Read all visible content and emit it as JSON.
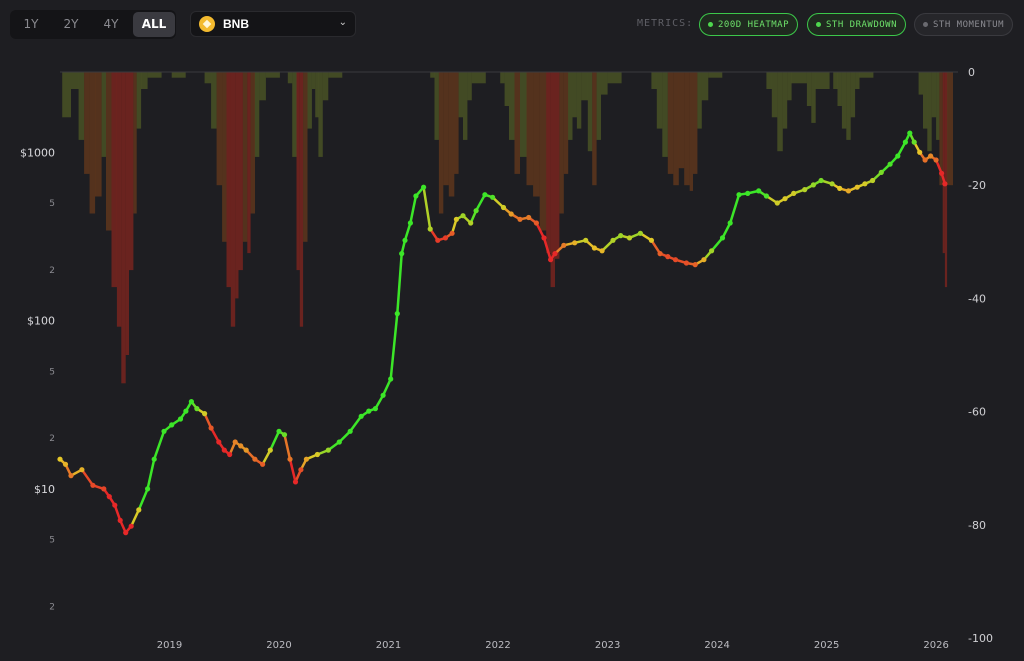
{
  "toolbar": {
    "ranges": [
      {
        "label": "1Y",
        "active": false
      },
      {
        "label": "2Y",
        "active": false
      },
      {
        "label": "4Y",
        "active": false
      },
      {
        "label": "ALL",
        "active": true
      }
    ],
    "asset": "BNB",
    "metrics_label": "METRICS:",
    "metrics": [
      {
        "label": "200D HEATMAP",
        "active": true
      },
      {
        "label": "STH DRAWDOWN",
        "active": true
      },
      {
        "label": "STH MOMENTUM",
        "active": false
      }
    ]
  },
  "chart_data": {
    "type": "line",
    "left_axis": {
      "scale": "log",
      "range": [
        1.3,
        3000
      ],
      "major_ticks": [
        {
          "value": 1000,
          "label": "$1000"
        },
        {
          "value": 100,
          "label": "$100"
        },
        {
          "value": 10,
          "label": "$10"
        }
      ],
      "minor_ticks": [
        {
          "value": 500,
          "label": "5"
        },
        {
          "value": 200,
          "label": "2"
        },
        {
          "value": 50,
          "label": "5"
        },
        {
          "value": 20,
          "label": "2"
        },
        {
          "value": 5,
          "label": "5"
        },
        {
          "value": 2,
          "label": "2"
        }
      ]
    },
    "right_axis": {
      "range": [
        -100,
        0
      ],
      "ticks": [
        {
          "value": 0,
          "label": "0"
        },
        {
          "value": -20,
          "label": "-20"
        },
        {
          "value": -40,
          "label": "-40"
        },
        {
          "value": -60,
          "label": "-60"
        },
        {
          "value": -80,
          "label": "-80"
        },
        {
          "value": -100,
          "label": "-100"
        }
      ]
    },
    "x_axis": {
      "range": [
        2018.0,
        2026.2
      ],
      "ticks": [
        {
          "value": 2019,
          "label": "2019"
        },
        {
          "value": 2020,
          "label": "2020"
        },
        {
          "value": 2021,
          "label": "2021"
        },
        {
          "value": 2022,
          "label": "2022"
        },
        {
          "value": 2023,
          "label": "2023"
        },
        {
          "value": 2024,
          "label": "2024"
        },
        {
          "value": 2025,
          "label": "2025"
        },
        {
          "value": 2026,
          "label": "2026"
        }
      ]
    },
    "price_series": [
      [
        2018.0,
        15
      ],
      [
        2018.05,
        14
      ],
      [
        2018.1,
        12
      ],
      [
        2018.2,
        13
      ],
      [
        2018.3,
        10.5
      ],
      [
        2018.4,
        10
      ],
      [
        2018.45,
        9
      ],
      [
        2018.5,
        8
      ],
      [
        2018.55,
        6.5
      ],
      [
        2018.6,
        5.5
      ],
      [
        2018.65,
        6
      ],
      [
        2018.72,
        7.5
      ],
      [
        2018.8,
        10
      ],
      [
        2018.86,
        15
      ],
      [
        2018.95,
        22
      ],
      [
        2019.02,
        24
      ],
      [
        2019.1,
        26
      ],
      [
        2019.15,
        29
      ],
      [
        2019.2,
        33
      ],
      [
        2019.25,
        30
      ],
      [
        2019.32,
        28
      ],
      [
        2019.38,
        23
      ],
      [
        2019.45,
        19
      ],
      [
        2019.5,
        17
      ],
      [
        2019.55,
        16
      ],
      [
        2019.6,
        19
      ],
      [
        2019.65,
        18
      ],
      [
        2019.7,
        17
      ],
      [
        2019.78,
        15
      ],
      [
        2019.85,
        14
      ],
      [
        2019.92,
        17
      ],
      [
        2020.0,
        22
      ],
      [
        2020.05,
        21
      ],
      [
        2020.1,
        15
      ],
      [
        2020.15,
        11
      ],
      [
        2020.2,
        13
      ],
      [
        2020.25,
        15
      ],
      [
        2020.35,
        16
      ],
      [
        2020.45,
        17
      ],
      [
        2020.55,
        19
      ],
      [
        2020.65,
        22
      ],
      [
        2020.75,
        27
      ],
      [
        2020.82,
        29
      ],
      [
        2020.88,
        30
      ],
      [
        2020.95,
        36
      ],
      [
        2021.02,
        45
      ],
      [
        2021.08,
        110
      ],
      [
        2021.12,
        250
      ],
      [
        2021.15,
        300
      ],
      [
        2021.2,
        380
      ],
      [
        2021.25,
        550
      ],
      [
        2021.32,
        620
      ],
      [
        2021.38,
        350
      ],
      [
        2021.45,
        300
      ],
      [
        2021.52,
        310
      ],
      [
        2021.58,
        330
      ],
      [
        2021.62,
        400
      ],
      [
        2021.68,
        420
      ],
      [
        2021.75,
        380
      ],
      [
        2021.8,
        450
      ],
      [
        2021.88,
        560
      ],
      [
        2021.95,
        540
      ],
      [
        2022.05,
        470
      ],
      [
        2022.12,
        430
      ],
      [
        2022.2,
        400
      ],
      [
        2022.28,
        410
      ],
      [
        2022.35,
        380
      ],
      [
        2022.42,
        310
      ],
      [
        2022.48,
        230
      ],
      [
        2022.52,
        250
      ],
      [
        2022.6,
        280
      ],
      [
        2022.7,
        290
      ],
      [
        2022.8,
        300
      ],
      [
        2022.88,
        270
      ],
      [
        2022.95,
        260
      ],
      [
        2023.05,
        300
      ],
      [
        2023.12,
        320
      ],
      [
        2023.2,
        310
      ],
      [
        2023.3,
        330
      ],
      [
        2023.4,
        300
      ],
      [
        2023.48,
        250
      ],
      [
        2023.55,
        240
      ],
      [
        2023.62,
        230
      ],
      [
        2023.72,
        220
      ],
      [
        2023.8,
        215
      ],
      [
        2023.88,
        230
      ],
      [
        2023.95,
        260
      ],
      [
        2024.05,
        310
      ],
      [
        2024.12,
        380
      ],
      [
        2024.2,
        560
      ],
      [
        2024.28,
        570
      ],
      [
        2024.38,
        590
      ],
      [
        2024.45,
        550
      ],
      [
        2024.55,
        500
      ],
      [
        2024.62,
        530
      ],
      [
        2024.7,
        570
      ],
      [
        2024.8,
        600
      ],
      [
        2024.88,
        640
      ],
      [
        2024.95,
        680
      ],
      [
        2025.05,
        650
      ],
      [
        2025.12,
        610
      ],
      [
        2025.2,
        590
      ],
      [
        2025.28,
        620
      ],
      [
        2025.35,
        650
      ],
      [
        2025.42,
        680
      ],
      [
        2025.5,
        760
      ],
      [
        2025.58,
        850
      ],
      [
        2025.65,
        950
      ],
      [
        2025.72,
        1150
      ],
      [
        2025.76,
        1300
      ],
      [
        2025.8,
        1150
      ],
      [
        2025.85,
        1000
      ],
      [
        2025.9,
        900
      ],
      [
        2025.95,
        950
      ],
      [
        2026.0,
        900
      ],
      [
        2026.05,
        750
      ],
      [
        2026.08,
        650
      ]
    ],
    "drawdown_series": [
      [
        2018.02,
        -8
      ],
      [
        2018.1,
        -3
      ],
      [
        2018.17,
        -12
      ],
      [
        2018.22,
        -18
      ],
      [
        2018.27,
        -25
      ],
      [
        2018.32,
        -22
      ],
      [
        2018.38,
        -15
      ],
      [
        2018.42,
        -28
      ],
      [
        2018.47,
        -38
      ],
      [
        2018.52,
        -45
      ],
      [
        2018.56,
        -55
      ],
      [
        2018.6,
        -50
      ],
      [
        2018.63,
        -35
      ],
      [
        2018.67,
        -25
      ],
      [
        2018.7,
        -10
      ],
      [
        2018.74,
        -3
      ],
      [
        2018.8,
        -1
      ],
      [
        2019.02,
        -1
      ],
      [
        2019.32,
        -2
      ],
      [
        2019.38,
        -10
      ],
      [
        2019.43,
        -20
      ],
      [
        2019.48,
        -30
      ],
      [
        2019.52,
        -38
      ],
      [
        2019.56,
        -45
      ],
      [
        2019.6,
        -40
      ],
      [
        2019.63,
        -35
      ],
      [
        2019.67,
        -30
      ],
      [
        2019.71,
        -32
      ],
      [
        2019.74,
        -25
      ],
      [
        2019.78,
        -15
      ],
      [
        2019.82,
        -5
      ],
      [
        2019.88,
        -1
      ],
      [
        2020.08,
        -2
      ],
      [
        2020.12,
        -15
      ],
      [
        2020.16,
        -35
      ],
      [
        2020.19,
        -45
      ],
      [
        2020.22,
        -30
      ],
      [
        2020.26,
        -10
      ],
      [
        2020.3,
        -3
      ],
      [
        2020.33,
        -8
      ],
      [
        2020.36,
        -15
      ],
      [
        2020.4,
        -5
      ],
      [
        2020.45,
        -1
      ],
      [
        2021.38,
        -1
      ],
      [
        2021.42,
        -12
      ],
      [
        2021.46,
        -25
      ],
      [
        2021.5,
        -20
      ],
      [
        2021.55,
        -22
      ],
      [
        2021.6,
        -18
      ],
      [
        2021.64,
        -8
      ],
      [
        2021.68,
        -12
      ],
      [
        2021.72,
        -5
      ],
      [
        2021.76,
        -2
      ],
      [
        2022.02,
        -2
      ],
      [
        2022.06,
        -6
      ],
      [
        2022.1,
        -12
      ],
      [
        2022.15,
        -18
      ],
      [
        2022.2,
        -15
      ],
      [
        2022.26,
        -20
      ],
      [
        2022.32,
        -22
      ],
      [
        2022.38,
        -28
      ],
      [
        2022.44,
        -32
      ],
      [
        2022.48,
        -38
      ],
      [
        2022.52,
        -33
      ],
      [
        2022.56,
        -25
      ],
      [
        2022.6,
        -18
      ],
      [
        2022.64,
        -12
      ],
      [
        2022.68,
        -8
      ],
      [
        2022.72,
        -10
      ],
      [
        2022.76,
        -5
      ],
      [
        2022.82,
        -14
      ],
      [
        2022.86,
        -20
      ],
      [
        2022.9,
        -12
      ],
      [
        2022.94,
        -4
      ],
      [
        2023.0,
        -2
      ],
      [
        2023.4,
        -3
      ],
      [
        2023.45,
        -10
      ],
      [
        2023.5,
        -15
      ],
      [
        2023.55,
        -18
      ],
      [
        2023.6,
        -20
      ],
      [
        2023.65,
        -17
      ],
      [
        2023.7,
        -20
      ],
      [
        2023.75,
        -21
      ],
      [
        2023.78,
        -18
      ],
      [
        2023.82,
        -10
      ],
      [
        2023.86,
        -5
      ],
      [
        2023.92,
        -1
      ],
      [
        2024.45,
        -3
      ],
      [
        2024.5,
        -8
      ],
      [
        2024.55,
        -14
      ],
      [
        2024.6,
        -10
      ],
      [
        2024.64,
        -5
      ],
      [
        2024.68,
        -2
      ],
      [
        2024.78,
        -2
      ],
      [
        2024.82,
        -6
      ],
      [
        2024.86,
        -9
      ],
      [
        2024.9,
        -3
      ],
      [
        2025.06,
        -3
      ],
      [
        2025.1,
        -6
      ],
      [
        2025.14,
        -10
      ],
      [
        2025.18,
        -12
      ],
      [
        2025.22,
        -8
      ],
      [
        2025.26,
        -3
      ],
      [
        2025.3,
        -1
      ],
      [
        2025.84,
        -4
      ],
      [
        2025.88,
        -10
      ],
      [
        2025.92,
        -14
      ],
      [
        2025.96,
        -8
      ],
      [
        2026.0,
        -12
      ],
      [
        2026.03,
        -20
      ],
      [
        2026.06,
        -32
      ],
      [
        2026.08,
        -38
      ],
      [
        2026.1,
        -20
      ]
    ]
  }
}
